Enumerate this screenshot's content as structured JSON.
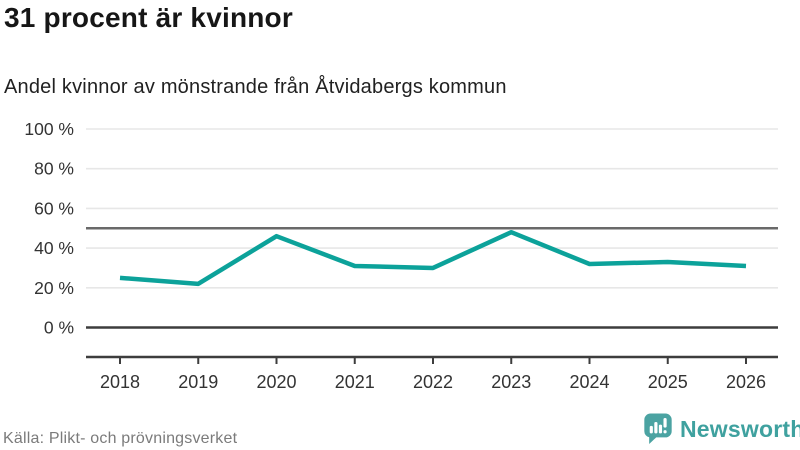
{
  "header": {
    "title": "31 procent är kvinnor",
    "subtitle": "Andel kvinnor av mönstrande från Åtvidabergs kommun"
  },
  "chart_data": {
    "type": "line",
    "title": "31 procent är kvinnor",
    "subtitle": "Andel kvinnor av mönstrande från Åtvidabergs kommun",
    "categories": [
      "2018",
      "2019",
      "2020",
      "2021",
      "2022",
      "2023",
      "2024",
      "2025",
      "2026"
    ],
    "series": [
      {
        "name": "Andel kvinnor av mönstrande",
        "values": [
          25,
          22,
          46,
          31,
          30,
          48,
          32,
          33,
          31
        ]
      }
    ],
    "unit": "%",
    "xlabel": "",
    "ylabel": "",
    "ylim": [
      0,
      100
    ],
    "ytick_values": [
      0,
      20,
      40,
      60,
      80,
      100
    ],
    "ytick_labels": [
      "0 %",
      "20 %",
      "40 %",
      "60 %",
      "80 %",
      "100 %"
    ],
    "grid": "horizontal",
    "legend": "none",
    "reference_line_value": 50,
    "colors": {
      "line": "#0ca29a",
      "grid": "#e7e7e7",
      "reference_line": "#696969",
      "axis": "#3d3d3d",
      "tick_label": "#333333"
    }
  },
  "footer": {
    "source": "Källa: Plikt- och prövningsverket",
    "brand": "Newsworthy",
    "brand_color": "#3fa19f",
    "logo_icon_color": "#4ba3a2"
  }
}
